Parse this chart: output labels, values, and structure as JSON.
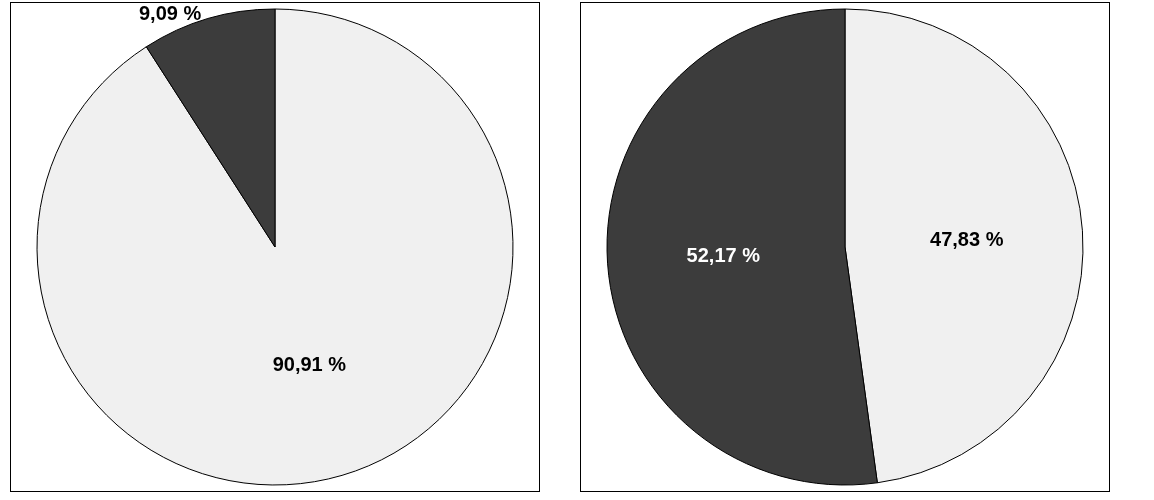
{
  "chart_data": [
    {
      "type": "pie",
      "categories": [
        null,
        null
      ],
      "values": [
        90.91,
        9.09
      ],
      "colors": [
        "#f0f0f0",
        "#3c3c3c"
      ],
      "value_labels": [
        "90,91 %",
        "9,09 %"
      ]
    },
    {
      "type": "pie",
      "categories": [
        null,
        null
      ],
      "values": [
        47.83,
        52.17
      ],
      "colors": [
        "#f0f0f0",
        "#3c3c3c"
      ],
      "value_labels": [
        "47,83 %",
        "52,17 %"
      ]
    }
  ]
}
